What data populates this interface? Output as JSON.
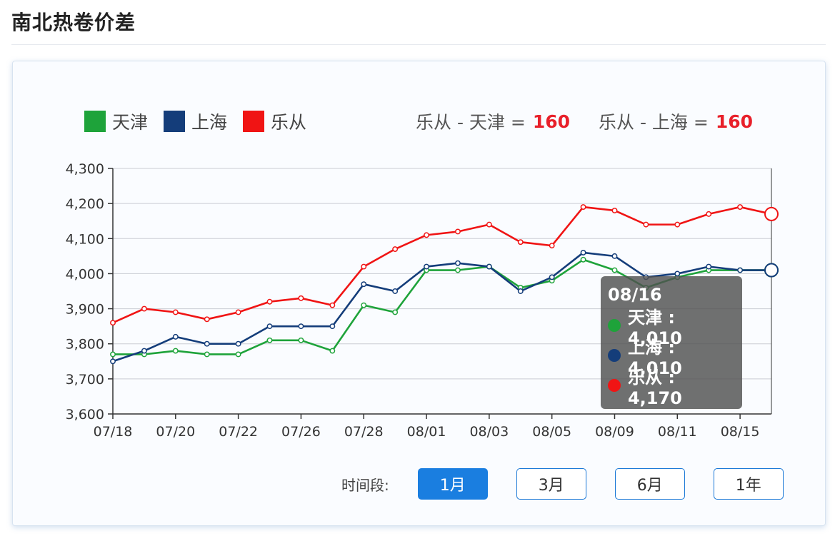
{
  "page": {
    "title": "南北热卷价差"
  },
  "legend": [
    {
      "label": "天津",
      "color": "#1ea33a"
    },
    {
      "label": "上海",
      "color": "#143d7a"
    },
    {
      "label": "乐从",
      "color": "#f01414"
    }
  ],
  "diffs": [
    {
      "label": "乐从 - 天津 =",
      "value": "160"
    },
    {
      "label": "乐从 - 上海 =",
      "value": "160"
    }
  ],
  "tooltip": {
    "date": "08/16",
    "rows": [
      {
        "label": "天津 : 4,010",
        "color": "#1ea33a"
      },
      {
        "label": "上海 : 4,010",
        "color": "#143d7a"
      },
      {
        "label": "乐从 : 4,170",
        "color": "#f01414"
      }
    ]
  },
  "period": {
    "label": "时间段:",
    "buttons": [
      {
        "label": "1月",
        "active": true
      },
      {
        "label": "3月",
        "active": false
      },
      {
        "label": "6月",
        "active": false
      },
      {
        "label": "1年",
        "active": false
      }
    ]
  },
  "chart_data": {
    "type": "line",
    "title": "南北热卷价差",
    "xlabel": "",
    "ylabel": "",
    "ylim": [
      3600,
      4300
    ],
    "yticks": [
      "3,600",
      "3,700",
      "3,800",
      "3,900",
      "4,000",
      "4,100",
      "4,200",
      "4,300"
    ],
    "grid": true,
    "legend_position": "top-left",
    "x_tick_labels": [
      "07/18",
      "07/20",
      "07/22",
      "07/26",
      "07/28",
      "08/01",
      "08/03",
      "08/05",
      "08/09",
      "08/11",
      "08/15"
    ],
    "x": [
      "07/18",
      "07/19",
      "07/20",
      "07/21",
      "07/22",
      "07/25",
      "07/26",
      "07/27",
      "07/28",
      "07/29",
      "08/01",
      "08/02",
      "08/03",
      "08/04",
      "08/05",
      "08/08",
      "08/09",
      "08/10",
      "08/11",
      "08/12",
      "08/15",
      "08/16"
    ],
    "series": [
      {
        "name": "天津",
        "color": "#1ea33a",
        "values": [
          3770,
          3770,
          3780,
          3770,
          3770,
          3810,
          3810,
          3780,
          3910,
          3890,
          4010,
          4010,
          4020,
          3960,
          3980,
          4040,
          4010,
          3960,
          3990,
          4010,
          4010,
          4010
        ]
      },
      {
        "name": "上海",
        "color": "#143d7a",
        "values": [
          3750,
          3780,
          3820,
          3800,
          3800,
          3850,
          3850,
          3850,
          3970,
          3950,
          4020,
          4030,
          4020,
          3950,
          3990,
          4060,
          4050,
          3990,
          4000,
          4020,
          4010,
          4010
        ]
      },
      {
        "name": "乐从",
        "color": "#f01414",
        "values": [
          3860,
          3900,
          3890,
          3870,
          3890,
          3920,
          3930,
          3910,
          4020,
          4070,
          4110,
          4120,
          4140,
          4090,
          4080,
          4190,
          4180,
          4140,
          4140,
          4170,
          4190,
          4170
        ]
      }
    ],
    "annotations": [
      "乐从 - 天津 = 160",
      "乐从 - 上海 = 160"
    ]
  }
}
